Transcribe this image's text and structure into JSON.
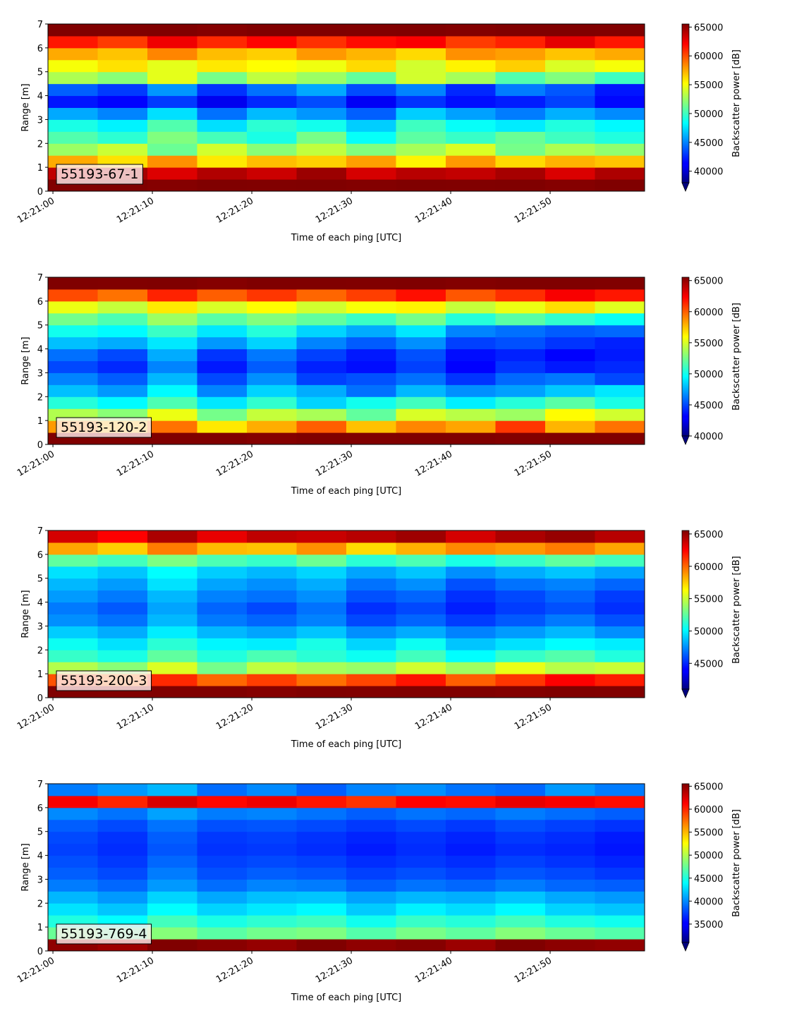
{
  "chart_data": [
    {
      "type": "heatmap",
      "colormap": "jet",
      "annotation": "55193-67-1",
      "xlabel": "Time of each ping [UTC]",
      "ylabel": "Range [m]",
      "colorbar_label": "Backscatter power [dB]",
      "colorbar_extend": "min",
      "x": [
        "12:21:02",
        "12:21:07",
        "12:21:12",
        "12:21:17",
        "12:21:22",
        "12:21:27",
        "12:21:32",
        "12:21:37",
        "12:21:42",
        "12:21:47",
        "12:21:52",
        "12:21:57"
      ],
      "y": [
        0.25,
        0.75,
        1.25,
        1.75,
        2.25,
        2.75,
        3.25,
        3.75,
        4.25,
        4.75,
        5.25,
        5.75,
        6.25,
        6.75
      ],
      "xlim": [
        "12:20:59.5",
        "12:21:59.5"
      ],
      "xticks": [
        "12:21:00",
        "12:21:10",
        "12:21:20",
        "12:21:30",
        "12:21:40",
        "12:21:50"
      ],
      "ylim": [
        0,
        7
      ],
      "yticks": [
        0,
        1,
        2,
        3,
        4,
        5,
        6,
        7
      ],
      "zlim": [
        38000,
        65535
      ],
      "zticks": [
        40000,
        45000,
        50000,
        55000,
        60000,
        65000
      ],
      "values": [
        [
          65500,
          65535,
          65400,
          65535,
          65500,
          65535,
          65450,
          65535,
          65500,
          65535,
          65400,
          65535
        ],
        [
          63800,
          64500,
          63000,
          64200,
          63500,
          64800,
          63200,
          64000,
          63700,
          64500,
          63100,
          64300
        ],
        [
          57500,
          56000,
          58200,
          55800,
          57000,
          56500,
          57800,
          55500,
          58000,
          56200,
          57300,
          56800
        ],
        [
          52500,
          53800,
          51200,
          54000,
          52000,
          53500,
          51800,
          52800,
          54200,
          51500,
          53000,
          52200
        ],
        [
          50500,
          49500,
          51800,
          50200,
          49000,
          51500,
          48500,
          50800,
          49800,
          51200,
          50000,
          49200
        ],
        [
          49000,
          48000,
          50500,
          47500,
          49500,
          48800,
          47000,
          50000,
          48500,
          47800,
          49200,
          48200
        ],
        [
          46000,
          45000,
          47500,
          44500,
          46500,
          45500,
          44000,
          47000,
          45800,
          44800,
          46200,
          45200
        ],
        [
          42000,
          41500,
          43000,
          41000,
          42500,
          43500,
          41200,
          42800,
          41800,
          42200,
          43200,
          41600
        ],
        [
          44000,
          43000,
          45500,
          42800,
          44500,
          46000,
          43500,
          45000,
          42500,
          44800,
          43800,
          42000
        ],
        [
          53000,
          52000,
          54500,
          51500,
          53500,
          52500,
          51000,
          54000,
          52800,
          50500,
          51800,
          50000
        ],
        [
          55000,
          56000,
          54500,
          55800,
          55200,
          54800,
          56200,
          54000,
          55500,
          56500,
          54200,
          55000
        ],
        [
          57500,
          56800,
          58500,
          57000,
          56500,
          58000,
          57200,
          56200,
          58200,
          57800,
          56800,
          57500
        ],
        [
          61500,
          60500,
          62500,
          61000,
          62000,
          60800,
          61800,
          62200,
          60500,
          61200,
          62800,
          61500
        ],
        [
          65535,
          65500,
          65535,
          65400,
          65535,
          65535,
          65500,
          65535,
          65450,
          65535,
          65535,
          65500
        ]
      ]
    },
    {
      "type": "heatmap",
      "colormap": "jet",
      "annotation": "55193-120-2",
      "xlabel": "Time of each ping [UTC]",
      "ylabel": "Range [m]",
      "colorbar_label": "Backscatter power [dB]",
      "colorbar_extend": "min",
      "x": [
        "12:21:02",
        "12:21:07",
        "12:21:12",
        "12:21:17",
        "12:21:22",
        "12:21:27",
        "12:21:32",
        "12:21:37",
        "12:21:42",
        "12:21:47",
        "12:21:52",
        "12:21:57"
      ],
      "y": [
        0.25,
        0.75,
        1.25,
        1.75,
        2.25,
        2.75,
        3.25,
        3.75,
        4.25,
        4.75,
        5.25,
        5.75,
        6.25,
        6.75
      ],
      "xlim": [
        "12:20:59.5",
        "12:21:59.5"
      ],
      "xticks": [
        "12:21:00",
        "12:21:10",
        "12:21:20",
        "12:21:30",
        "12:21:40",
        "12:21:50"
      ],
      "ylim": [
        0,
        7
      ],
      "yticks": [
        0,
        1,
        2,
        3,
        4,
        5,
        6,
        7
      ],
      "zlim": [
        40000,
        65535
      ],
      "zticks": [
        40000,
        45000,
        50000,
        55000,
        60000,
        65000
      ],
      "values": [
        [
          65535,
          65500,
          65535,
          65535,
          65400,
          65535,
          65500,
          65535,
          65535,
          65450,
          65535,
          65500
        ],
        [
          58500,
          57000,
          59500,
          56500,
          58000,
          60000,
          57500,
          59000,
          58200,
          61000,
          57800,
          59500
        ],
        [
          54000,
          53000,
          55500,
          52500,
          54500,
          53800,
          52000,
          55000,
          54200,
          53500,
          56000,
          54800
        ],
        [
          50500,
          49500,
          51500,
          49000,
          50800,
          48500,
          50000,
          51200,
          49200,
          50500,
          51800,
          50200
        ],
        [
          48000,
          47000,
          49500,
          46500,
          48500,
          47500,
          46000,
          47800,
          46800,
          47200,
          48200,
          49000
        ],
        [
          46500,
          45500,
          47800,
          45000,
          46800,
          44800,
          45200,
          46000,
          44500,
          45800,
          46200,
          45000
        ],
        [
          45000,
          44200,
          46500,
          43800,
          45500,
          44000,
          43500,
          44800,
          43200,
          44500,
          43800,
          44200
        ],
        [
          46000,
          45000,
          47500,
          44500,
          46200,
          44800,
          43800,
          45200,
          43500,
          44000,
          43200,
          43800
        ],
        [
          48000,
          47500,
          49000,
          47000,
          48500,
          46500,
          45500,
          46800,
          44800,
          45200,
          44500,
          44000
        ],
        [
          50000,
          49500,
          51000,
          49000,
          50500,
          48500,
          47500,
          49000,
          46500,
          46000,
          45500,
          45800
        ],
        [
          52500,
          51500,
          53500,
          51800,
          52800,
          52000,
          51000,
          52500,
          50500,
          51800,
          50800,
          49800
        ],
        [
          55500,
          54500,
          56500,
          55000,
          56000,
          54800,
          55800,
          56200,
          54500,
          55500,
          56800,
          55200
        ],
        [
          60500,
          59500,
          61500,
          60000,
          61000,
          59800,
          60800,
          62000,
          60200,
          61200,
          62500,
          61800
        ],
        [
          65535,
          65500,
          65535,
          65400,
          65535,
          65535,
          65500,
          65535,
          65450,
          65535,
          65535,
          65500
        ]
      ]
    },
    {
      "type": "heatmap",
      "colormap": "jet",
      "annotation": "55193-200-3",
      "xlabel": "Time of each ping [UTC]",
      "ylabel": "Range [m]",
      "colorbar_label": "Backscatter power [dB]",
      "colorbar_extend": "min",
      "x": [
        "12:21:02",
        "12:21:07",
        "12:21:12",
        "12:21:17",
        "12:21:22",
        "12:21:27",
        "12:21:32",
        "12:21:37",
        "12:21:42",
        "12:21:47",
        "12:21:52",
        "12:21:57"
      ],
      "y": [
        0.25,
        0.75,
        1.25,
        1.75,
        2.25,
        2.75,
        3.25,
        3.75,
        4.25,
        4.75,
        5.25,
        5.75,
        6.25,
        6.75
      ],
      "xlim": [
        "12:20:59.5",
        "12:21:59.5"
      ],
      "xticks": [
        "12:21:00",
        "12:21:10",
        "12:21:20",
        "12:21:30",
        "12:21:40",
        "12:21:50"
      ],
      "ylim": [
        0,
        7
      ],
      "yticks": [
        0,
        1,
        2,
        3,
        4,
        5,
        6,
        7
      ],
      "zlim": [
        41000,
        65535
      ],
      "zticks": [
        45000,
        50000,
        55000,
        60000,
        65000
      ],
      "values": [
        [
          65535,
          65500,
          65535,
          65535,
          65400,
          65535,
          65500,
          65535,
          65535,
          65450,
          65535,
          65500
        ],
        [
          60500,
          59500,
          61500,
          60000,
          61000,
          59800,
          60800,
          62000,
          60200,
          61200,
          62500,
          61800
        ],
        [
          54500,
          53500,
          55500,
          53000,
          54800,
          54200,
          53800,
          55200,
          54000,
          55800,
          54600,
          55000
        ],
        [
          51500,
          50800,
          52500,
          51000,
          52000,
          51200,
          50500,
          51800,
          50200,
          51500,
          52200,
          51000
        ],
        [
          50500,
          49500,
          51200,
          50000,
          49800,
          50800,
          49200,
          50500,
          48800,
          49500,
          50200,
          49800
        ],
        [
          49000,
          48200,
          49800,
          48500,
          48000,
          48800,
          47500,
          48200,
          47200,
          47800,
          48500,
          47500
        ],
        [
          47500,
          46800,
          48500,
          47000,
          46500,
          47200,
          45800,
          46500,
          45500,
          46200,
          47000,
          46000
        ],
        [
          47000,
          46200,
          48000,
          46500,
          45800,
          46800,
          45200,
          45800,
          44800,
          45500,
          46000,
          45200
        ],
        [
          47800,
          47000,
          48500,
          47200,
          46800,
          47500,
          46000,
          46500,
          45200,
          45800,
          46500,
          45500
        ],
        [
          48500,
          47800,
          49500,
          48000,
          47500,
          48200,
          46800,
          47500,
          46000,
          46800,
          47200,
          46500
        ],
        [
          49500,
          48800,
          50200,
          49000,
          48500,
          49200,
          48000,
          48800,
          47500,
          48200,
          48800,
          48000
        ],
        [
          52500,
          51800,
          53200,
          52000,
          51500,
          52800,
          51200,
          52000,
          50800,
          51500,
          52500,
          51800
        ],
        [
          58500,
          57500,
          59500,
          58000,
          57800,
          59000,
          57200,
          58200,
          59200,
          58800,
          59500,
          58500
        ],
        [
          63500,
          62500,
          64500,
          63000,
          64000,
          63800,
          64200,
          64800,
          63500,
          64500,
          65000,
          64200
        ]
      ]
    },
    {
      "type": "heatmap",
      "colormap": "jet",
      "annotation": "55193-769-4",
      "xlabel": "Time of each ping [UTC]",
      "ylabel": "Range [m]",
      "colorbar_label": "Backscatter power [dB]",
      "colorbar_extend": "min",
      "x": [
        "12:21:02",
        "12:21:07",
        "12:21:12",
        "12:21:17",
        "12:21:22",
        "12:21:27",
        "12:21:32",
        "12:21:37",
        "12:21:42",
        "12:21:47",
        "12:21:52",
        "12:21:57"
      ],
      "y": [
        0.25,
        0.75,
        1.25,
        1.75,
        2.25,
        2.75,
        3.25,
        3.75,
        4.25,
        4.75,
        5.25,
        5.75,
        6.25,
        6.75
      ],
      "xlim": [
        "12:20:59.5",
        "12:21:59.5"
      ],
      "xticks": [
        "12:21:00",
        "12:21:10",
        "12:21:20",
        "12:21:30",
        "12:21:40",
        "12:21:50"
      ],
      "ylim": [
        0,
        7
      ],
      "yticks": [
        0,
        1,
        2,
        3,
        4,
        5,
        6,
        7
      ],
      "zlim": [
        31000,
        65535
      ],
      "zticks": [
        35000,
        40000,
        45000,
        50000,
        55000,
        60000,
        65000
      ],
      "values": [
        [
          65000,
          64500,
          65535,
          65200,
          64800,
          65535,
          65000,
          65300,
          64600,
          65535,
          65100,
          64900
        ],
        [
          47500,
          46500,
          48500,
          47000,
          47800,
          48200,
          46800,
          48000,
          47200,
          48500,
          47500,
          46800
        ],
        [
          45000,
          44000,
          46200,
          44800,
          45500,
          46000,
          44500,
          45800,
          45200,
          46200,
          45000,
          44500
        ],
        [
          43000,
          42000,
          44000,
          42500,
          43200,
          43800,
          42200,
          43500,
          42800,
          43800,
          42500,
          42000
        ],
        [
          41500,
          40500,
          42500,
          41000,
          41800,
          42000,
          40800,
          41500,
          41200,
          42000,
          41000,
          40500
        ],
        [
          39500,
          38800,
          40500,
          39000,
          39800,
          39500,
          38500,
          39200,
          38800,
          39500,
          38800,
          38500
        ],
        [
          38500,
          37800,
          39500,
          38000,
          38500,
          38200,
          37500,
          38000,
          37500,
          38200,
          37800,
          37200
        ],
        [
          38000,
          37200,
          38800,
          37500,
          37800,
          37500,
          36800,
          37200,
          36800,
          37500,
          37000,
          36500
        ],
        [
          37500,
          36800,
          38200,
          37000,
          37200,
          36800,
          36200,
          36800,
          36200,
          36800,
          36500,
          36000
        ],
        [
          37800,
          37000,
          38500,
          37200,
          37500,
          37000,
          36500,
          37000,
          36500,
          37200,
          36800,
          36200
        ],
        [
          38500,
          37800,
          39200,
          38000,
          38200,
          37800,
          37200,
          37800,
          37200,
          38000,
          37500,
          37000
        ],
        [
          40000,
          39200,
          40800,
          39500,
          39800,
          39200,
          38500,
          39200,
          38800,
          39500,
          39000,
          38500
        ],
        [
          61500,
          60000,
          62500,
          61000,
          61800,
          60500,
          59500,
          61200,
          60800,
          62000,
          61500,
          60800
        ],
        [
          39500,
          40500,
          41500,
          39000,
          40000,
          38500,
          39800,
          40200,
          39200,
          38800,
          40500,
          39500
        ]
      ]
    }
  ]
}
